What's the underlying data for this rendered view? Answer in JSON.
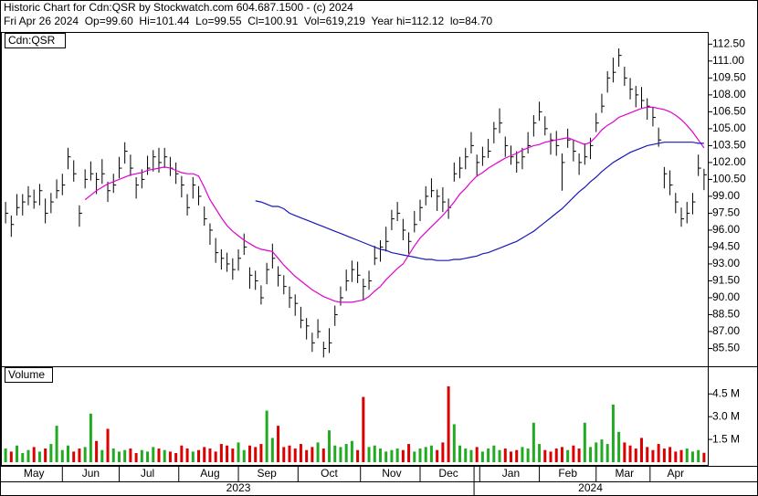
{
  "chart_data": [
    {
      "type": "hlc",
      "title": "Historic Chart for Cdn:QSR by Stockwatch.com 604.687.1500 - (c) 2024",
      "subtitle": "Fri Apr 26 2024  Op=99.60  Hi=101.44  Lo=99.55  Cl=100.91  Vol=619,219  Year hi=112.12  lo=84.70",
      "label": "Cdn:QSR",
      "color": "#000000",
      "categories": [
        null,
        null,
        null,
        null,
        null,
        "May",
        null,
        null,
        null,
        null,
        null,
        null,
        null,
        null,
        null,
        "Jun",
        null,
        null,
        null,
        null,
        null,
        null,
        null,
        null,
        null,
        "Jul",
        null,
        null,
        null,
        null,
        null,
        null,
        null,
        null,
        null,
        null,
        "Aug",
        null,
        null,
        null,
        null,
        null,
        null,
        null,
        null,
        null,
        "Sep",
        null,
        null,
        null,
        null,
        null,
        null,
        null,
        null,
        null,
        null,
        "Oct",
        null,
        null,
        null,
        null,
        null,
        null,
        null,
        null,
        null,
        null,
        "Nov",
        null,
        null,
        null,
        null,
        null,
        null,
        null,
        null,
        null,
        "Dec",
        null,
        null,
        null,
        null,
        null,
        null,
        null,
        null,
        null,
        null,
        "Jan",
        null,
        null,
        null,
        null,
        null,
        null,
        null,
        null,
        null,
        "Feb",
        null,
        null,
        null,
        null,
        null,
        null,
        null,
        null,
        null,
        "Mar",
        null,
        null,
        null,
        null,
        null,
        null,
        null,
        null,
        "Apr",
        null,
        null,
        null,
        null,
        null
      ],
      "x_groups": [
        {
          "label": "2023",
          "count": 83
        },
        {
          "label": "2024",
          "count": 41
        }
      ],
      "high": [
        98.5,
        97.3,
        99.2,
        99.2,
        99.9,
        99.6,
        100.1,
        98.8,
        99.3,
        100.5,
        101,
        103.3,
        102.2,
        98.2,
        101.4,
        102.1,
        101.1,
        102.3,
        100.3,
        101,
        102.5,
        103.8,
        102.7,
        100.7,
        101.4,
        102.6,
        103.1,
        103.3,
        103.3,
        102.5,
        102,
        100.8,
        99.2,
        100.7,
        99.9,
        98.1,
        96.6,
        95.3,
        94.3,
        94,
        93.5,
        94.3,
        95.7,
        92.7,
        92.4,
        91.1,
        93.1,
        94.8,
        92.8,
        92,
        91,
        90.3,
        89.2,
        88.2,
        86.9,
        88.1,
        86.1,
        87.3,
        89.3,
        91,
        92.5,
        93.3,
        93.2,
        91.7,
        92.4,
        94.6,
        95.1,
        96.3,
        97.8,
        98.5,
        97,
        95.8,
        97.7,
        98.7,
        99.9,
        100.6,
        99.6,
        99.8,
        98.8,
        102,
        102.5,
        103.3,
        104.7,
        102.7,
        103.4,
        104.1,
        105.6,
        106.8,
        104.3,
        103.5,
        103,
        103.3,
        104.7,
        106.2,
        107.4,
        106.1,
        104.6,
        104.8,
        102.8,
        105,
        104,
        102.8,
        103.7,
        104.2,
        106.4,
        108.1,
        110.1,
        111.3,
        112.12,
        110.5,
        109.5,
        108.8,
        108.7,
        107.7,
        106.9,
        105.1,
        101.6,
        101.3,
        99.3,
        98,
        98.5,
        99.3,
        102.7,
        101.44
      ],
      "low": [
        96.6,
        95.4,
        97.3,
        97.3,
        98.2,
        97.9,
        98.2,
        96.6,
        97.5,
        98.8,
        99.1,
        101.4,
        100.3,
        96.3,
        99.7,
        100.4,
        99.2,
        100.1,
        98.5,
        99.3,
        100.6,
        101.9,
        100.8,
        98.8,
        99.7,
        100.9,
        101.2,
        101.1,
        101.5,
        100.8,
        100.1,
        98.9,
        97.3,
        98.8,
        98.2,
        96.4,
        94.7,
        93.1,
        92.5,
        92.3,
        91.6,
        92.4,
        93.8,
        90.8,
        90.7,
        89.4,
        91.2,
        92.6,
        91,
        90.3,
        89.1,
        88.4,
        87.3,
        86.3,
        85.2,
        86.4,
        84.7,
        85.1,
        87.5,
        89.3,
        90.6,
        91.4,
        91.3,
        89.8,
        90.7,
        92.9,
        93.2,
        94.1,
        96,
        96.8,
        95.1,
        93.9,
        95.8,
        96.8,
        98.2,
        98.9,
        97.7,
        97.6,
        97,
        100.3,
        100.6,
        101.4,
        102.8,
        100.8,
        101.7,
        102.4,
        103.7,
        104.6,
        102.5,
        101.8,
        101.1,
        101.4,
        102.8,
        104.3,
        105.7,
        104.4,
        102.7,
        102.6,
        99.5,
        103.3,
        102.1,
        100.9,
        101.8,
        102.3,
        104.7,
        106.4,
        108.2,
        109.1,
        110.5,
        108.8,
        107.6,
        106.9,
        106.8,
        105.8,
        105.2,
        103.4,
        99.7,
        99.1,
        97.5,
        96.3,
        96.6,
        97.4,
        100.8,
        99.55
      ],
      "close": [
        97.5,
        96.5,
        98,
        98.5,
        99,
        98.5,
        99.5,
        97.5,
        98.5,
        99.5,
        100,
        102.5,
        101,
        97.5,
        100.5,
        101,
        100.5,
        101,
        99.5,
        100,
        101.5,
        103,
        101.5,
        100,
        100.5,
        101.5,
        102.5,
        102,
        102.5,
        101.5,
        101,
        100,
        98,
        100,
        99,
        97,
        96,
        94,
        93.5,
        93,
        92.5,
        93.5,
        94.5,
        92,
        91.5,
        90,
        92.5,
        93.5,
        92,
        91,
        90,
        89.5,
        88,
        87.5,
        86,
        87,
        85.5,
        86,
        88.5,
        90,
        91.5,
        92.5,
        92,
        91,
        91.5,
        93.5,
        94.5,
        95,
        97,
        97.5,
        96,
        95,
        96.5,
        98,
        99,
        99.5,
        99,
        98.5,
        98,
        101,
        101.5,
        102.5,
        103.5,
        102,
        102.5,
        103,
        105,
        105.5,
        103.5,
        102.5,
        102,
        102.5,
        103.5,
        105.5,
        106.5,
        105,
        104,
        103.5,
        102,
        104,
        103,
        102,
        102.5,
        103.5,
        105.5,
        107,
        109.5,
        110,
        111.5,
        109.5,
        108.5,
        108,
        107.5,
        107,
        106,
        104,
        101,
        100,
        98.5,
        97,
        97.5,
        98.5,
        101.5,
        100.91
      ],
      "series": [
        {
          "color": "#e000d0",
          "values": [
            null,
            null,
            null,
            null,
            null,
            null,
            null,
            null,
            null,
            null,
            null,
            null,
            null,
            null,
            98.7,
            99.1,
            99.5,
            99.8,
            100.1,
            100.3,
            100.5,
            100.7,
            100.9,
            101.0,
            101.1,
            101.3,
            101.4,
            101.5,
            101.6,
            101.5,
            101.3,
            101.1,
            101.0,
            101.0,
            100.8,
            99.8,
            98.7,
            97.9,
            97.1,
            96.4,
            95.9,
            95.5,
            95.1,
            94.8,
            94.5,
            94.3,
            94.2,
            94.1,
            93.5,
            92.9,
            92.4,
            91.9,
            91.5,
            91.1,
            90.7,
            90.4,
            90.1,
            89.9,
            89.7,
            89.6,
            89.6,
            89.6,
            89.7,
            89.8,
            90.1,
            90.6,
            91.0,
            91.6,
            92.1,
            92.6,
            93.0,
            93.8,
            94.6,
            95.3,
            95.8,
            96.3,
            96.8,
            97.3,
            97.9,
            98.5,
            99.2,
            99.7,
            100.3,
            100.8,
            101.1,
            101.5,
            101.8,
            102.1,
            102.4,
            102.6,
            102.8,
            103.1,
            103.3,
            103.5,
            103.6,
            103.8,
            103.9,
            104.0,
            104.1,
            104.2,
            104.0,
            103.8,
            103.6,
            103.8,
            104.3,
            104.9,
            105.3,
            105.6,
            106.0,
            106.2,
            106.4,
            106.6,
            106.8,
            106.9,
            106.9,
            106.8,
            106.7,
            106.5,
            106.2,
            105.8,
            105.3,
            104.7,
            104.0,
            103.3
          ]
        },
        {
          "color": "#1818b8",
          "values": [
            null,
            null,
            null,
            null,
            null,
            null,
            null,
            null,
            null,
            null,
            null,
            null,
            null,
            null,
            null,
            null,
            null,
            null,
            null,
            null,
            null,
            null,
            null,
            null,
            null,
            null,
            null,
            null,
            null,
            null,
            null,
            null,
            null,
            null,
            null,
            null,
            null,
            null,
            null,
            null,
            null,
            null,
            null,
            null,
            98.6,
            98.5,
            98.3,
            98.1,
            98.1,
            97.9,
            97.5,
            97.3,
            97.1,
            96.9,
            96.7,
            96.5,
            96.3,
            96.1,
            95.9,
            95.7,
            95.5,
            95.3,
            95.1,
            94.9,
            94.7,
            94.5,
            94.3,
            94.2,
            94.0,
            93.9,
            93.8,
            93.7,
            93.6,
            93.5,
            93.4,
            93.4,
            93.3,
            93.3,
            93.3,
            93.4,
            93.4,
            93.5,
            93.6,
            93.7,
            93.9,
            94.0,
            94.2,
            94.4,
            94.6,
            94.8,
            95.0,
            95.3,
            95.6,
            95.9,
            96.3,
            96.7,
            97.1,
            97.5,
            97.9,
            98.4,
            98.9,
            99.4,
            99.8,
            100.3,
            100.7,
            101.2,
            101.6,
            102.0,
            102.3,
            102.6,
            102.9,
            103.1,
            103.3,
            103.5,
            103.6,
            103.7,
            103.8,
            103.8,
            103.8,
            103.8,
            103.8,
            103.8,
            103.7,
            103.7
          ]
        }
      ],
      "ylim": [
        84,
        113.5
      ],
      "yticks": [
        {
          "value": 85.5,
          "label": "85.50"
        },
        {
          "value": 87,
          "label": "87.00"
        },
        {
          "value": 88.5,
          "label": "88.50"
        },
        {
          "value": 90,
          "label": "90.00"
        },
        {
          "value": 91.5,
          "label": "91.50"
        },
        {
          "value": 93,
          "label": "93.00"
        },
        {
          "value": 94.5,
          "label": "94.50"
        },
        {
          "value": 96,
          "label": "96.00"
        },
        {
          "value": 97.5,
          "label": "97.50"
        },
        {
          "value": 99,
          "label": "99.00"
        },
        {
          "value": 100.5,
          "label": "100.50"
        },
        {
          "value": 102,
          "label": "102.00"
        },
        {
          "value": 103.5,
          "label": "103.50"
        },
        {
          "value": 105,
          "label": "105.00"
        },
        {
          "value": 106.5,
          "label": "106.50"
        },
        {
          "value": 108,
          "label": "108.00"
        },
        {
          "value": 109.5,
          "label": "109.50"
        },
        {
          "value": 111,
          "label": "111.00"
        },
        {
          "value": 112.5,
          "label": "112.50"
        }
      ]
    },
    {
      "type": "bar",
      "label": "Volume",
      "up_color": "#22aa22",
      "down_color": "#dd0000",
      "values": [
        0.9,
        0.7,
        1.1,
        0.6,
        0.8,
        1.0,
        0.7,
        0.9,
        1.2,
        2.4,
        0.8,
        1.1,
        0.7,
        0.9,
        1.0,
        3.2,
        1.4,
        0.8,
        2.2,
        0.9,
        0.7,
        0.8,
        0.9,
        0.6,
        0.8,
        0.7,
        1.0,
        0.9,
        0.8,
        0.7,
        0.6,
        1.1,
        0.9,
        0.7,
        0.8,
        1.0,
        0.9,
        0.7,
        1.2,
        1.1,
        0.9,
        1.3,
        0.8,
        1.1,
        1.0,
        1.2,
        3.4,
        1.6,
        2.4,
        1.0,
        1.1,
        0.9,
        1.2,
        0.8,
        1.0,
        1.3,
        0.9,
        2.1,
        1.1,
        1.0,
        1.2,
        1.4,
        0.8,
        4.3,
        1.0,
        1.1,
        0.9,
        0.7,
        0.8,
        0.9,
        0.8,
        1.2,
        0.7,
        0.9,
        1.0,
        1.1,
        0.8,
        1.3,
        5.0,
        2.5,
        1.1,
        0.9,
        0.8,
        1.0,
        0.7,
        0.9,
        1.1,
        0.8,
        0.9,
        0.7,
        0.8,
        1.0,
        0.9,
        2.6,
        1.2,
        0.8,
        0.7,
        0.9,
        1.0,
        0.8,
        1.1,
        0.9,
        2.6,
        1.0,
        1.3,
        1.5,
        1.2,
        3.8,
        2.0,
        1.3,
        1.1,
        0.9,
        1.6,
        1.0,
        0.8,
        1.2,
        0.9,
        1.0,
        0.7,
        0.8,
        0.9,
        0.7,
        0.8,
        0.62
      ],
      "ylim": [
        0,
        6.2
      ],
      "yticks": [
        {
          "value": 1.5,
          "label": "1.5 M"
        },
        {
          "value": 3,
          "label": "3.0 M"
        },
        {
          "value": 4.5,
          "label": "4.5 M"
        }
      ]
    }
  ]
}
